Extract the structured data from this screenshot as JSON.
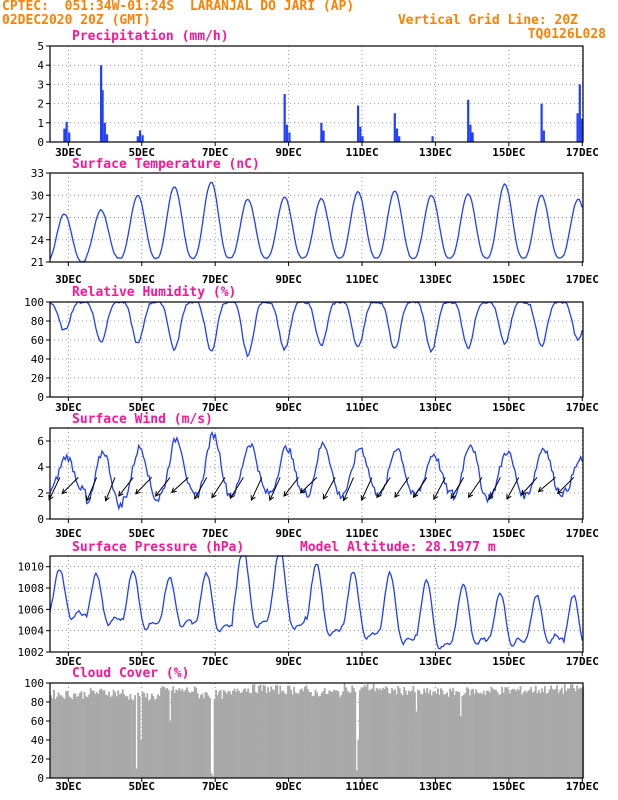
{
  "header": {
    "line1_left": "CPTEC:  051:34W-01:24S  LARANJAL DO JARI (AP)",
    "line2_left": "02DEC2020 20Z (GMT)",
    "line2_right": "Vertical Grid Line: 20Z",
    "line3_right": "TQ0126L028"
  },
  "x_ticks": [
    "3DEC",
    "5DEC",
    "7DEC",
    "9DEC",
    "11DEC",
    "13DEC",
    "15DEC",
    "17DEC"
  ],
  "x_range_days": [
    2.33,
    16.85
  ],
  "colors": {
    "title": "#ff1493",
    "header": "#ff8000",
    "line": "#1f3fff",
    "bar": "#1f3fff",
    "cloud": "#a9a9a9",
    "wind_arrow": "#000000"
  },
  "chart_data": [
    {
      "type": "bar",
      "title": "Precipitation (mm/h)",
      "ylim": [
        0,
        5
      ],
      "yticks": [
        0,
        1,
        2,
        3,
        4,
        5
      ],
      "events": [
        {
          "day": 2.72,
          "value": 0.7
        },
        {
          "day": 2.78,
          "value": 1.05
        },
        {
          "day": 2.85,
          "value": 0.5
        },
        {
          "day": 3.72,
          "value": 4.0
        },
        {
          "day": 3.76,
          "value": 2.7
        },
        {
          "day": 3.82,
          "value": 1.0
        },
        {
          "day": 3.88,
          "value": 0.4
        },
        {
          "day": 4.72,
          "value": 0.3
        },
        {
          "day": 4.78,
          "value": 0.6
        },
        {
          "day": 4.85,
          "value": 0.35
        },
        {
          "day": 8.72,
          "value": 2.5
        },
        {
          "day": 8.78,
          "value": 0.9
        },
        {
          "day": 8.85,
          "value": 0.5
        },
        {
          "day": 9.72,
          "value": 1.0
        },
        {
          "day": 9.78,
          "value": 0.6
        },
        {
          "day": 10.72,
          "value": 1.9
        },
        {
          "day": 10.78,
          "value": 0.8
        },
        {
          "day": 10.84,
          "value": 0.3
        },
        {
          "day": 11.72,
          "value": 1.5
        },
        {
          "day": 11.78,
          "value": 0.7
        },
        {
          "day": 11.84,
          "value": 0.3
        },
        {
          "day": 12.75,
          "value": 0.3
        },
        {
          "day": 13.72,
          "value": 2.2
        },
        {
          "day": 13.78,
          "value": 0.9
        },
        {
          "day": 13.84,
          "value": 0.5
        },
        {
          "day": 15.72,
          "value": 2.0
        },
        {
          "day": 15.78,
          "value": 0.6
        },
        {
          "day": 16.7,
          "value": 1.5
        },
        {
          "day": 16.76,
          "value": 3.0
        },
        {
          "day": 16.82,
          "value": 1.2
        }
      ]
    },
    {
      "type": "line",
      "title": "Surface Temperature (nC)",
      "ylim": [
        21,
        33
      ],
      "yticks": [
        21,
        24,
        27,
        30,
        33
      ],
      "min": [
        21.0,
        21.5,
        21.5,
        21.5,
        21.5,
        21.5,
        21.5,
        21.5,
        21.5,
        21.5,
        21.5,
        21.5,
        21.5,
        21.5,
        21.5
      ],
      "max": [
        27.5,
        28.0,
        30.0,
        31.2,
        31.8,
        29.5,
        29.8,
        29.5,
        30.5,
        30.6,
        30.0,
        30.2,
        31.5,
        30.0,
        29.5
      ]
    },
    {
      "type": "line",
      "title": "Relative Humidity (%)",
      "ylim": [
        0,
        100
      ],
      "yticks": [
        0,
        20,
        40,
        60,
        80,
        100
      ],
      "max": [
        100,
        100,
        100,
        100,
        100,
        100,
        100,
        100,
        100,
        100,
        100,
        100,
        100,
        100,
        100
      ],
      "min": [
        70,
        58,
        56,
        50,
        48,
        44,
        50,
        54,
        52,
        50,
        48,
        52,
        56,
        54,
        60
      ]
    },
    {
      "type": "line",
      "title": "Surface Wind (m/s)",
      "ylim": [
        0,
        7
      ],
      "yticks": [
        0,
        2,
        4,
        6
      ],
      "max": [
        4.8,
        5.2,
        5.5,
        6.2,
        6.5,
        5.8,
        5.5,
        5.8,
        5.5,
        5.5,
        5.0,
        5.8,
        5.2,
        5.5,
        4.5
      ],
      "min": [
        2.2,
        1.0,
        1.5,
        1.8,
        1.8,
        2.0,
        2.0,
        1.8,
        2.0,
        1.8,
        2.0,
        1.6,
        1.8,
        2.0,
        2.0
      ],
      "arrow_days": [
        2.6,
        3.1,
        3.6,
        4.1,
        4.6,
        5.1,
        5.6,
        6.1,
        6.6,
        7.1,
        7.6,
        8.1,
        8.6,
        9.1,
        9.6,
        10.1,
        10.6,
        11.1,
        11.6,
        12.1,
        12.6,
        13.1,
        13.6,
        14.1,
        14.6,
        15.1,
        15.6,
        16.1,
        16.6
      ]
    },
    {
      "type": "line",
      "title": "Surface Pressure (hPa)",
      "annotation": "Model Altitude: 28.1977 m",
      "ylim": [
        1002,
        1011
      ],
      "yticks": [
        1002,
        1004,
        1006,
        1008,
        1010
      ],
      "max": [
        1009.0,
        1008.5,
        1008.8,
        1008.2,
        1008.6,
        1011.0,
        1011.0,
        1009.5,
        1008.8,
        1008.6,
        1008.0,
        1007.5,
        1006.8,
        1006.5,
        1006.5
      ],
      "min": [
        1005.0,
        1004.5,
        1004.0,
        1004.2,
        1003.8,
        1004.0,
        1003.8,
        1003.2,
        1003.0,
        1002.5,
        1002.0,
        1002.5,
        1002.5,
        1002.8,
        1002.0
      ]
    },
    {
      "type": "area",
      "title": "Cloud Cover (%)",
      "ylim": [
        0,
        100
      ],
      "yticks": [
        0,
        20,
        40,
        60,
        80,
        100
      ],
      "daily_mean": [
        88,
        90,
        86,
        92,
        88,
        94,
        93,
        90,
        95,
        92,
        90,
        91,
        92,
        93,
        94
      ],
      "dips": [
        {
          "day": 4.65,
          "value": 10
        },
        {
          "day": 4.8,
          "value": 40
        },
        {
          "day": 5.6,
          "value": 60
        },
        {
          "day": 6.7,
          "value": 5
        },
        {
          "day": 6.75,
          "value": 2
        },
        {
          "day": 10.65,
          "value": 8
        },
        {
          "day": 10.7,
          "value": 40
        },
        {
          "day": 12.3,
          "value": 70
        },
        {
          "day": 13.5,
          "value": 65
        }
      ]
    }
  ]
}
